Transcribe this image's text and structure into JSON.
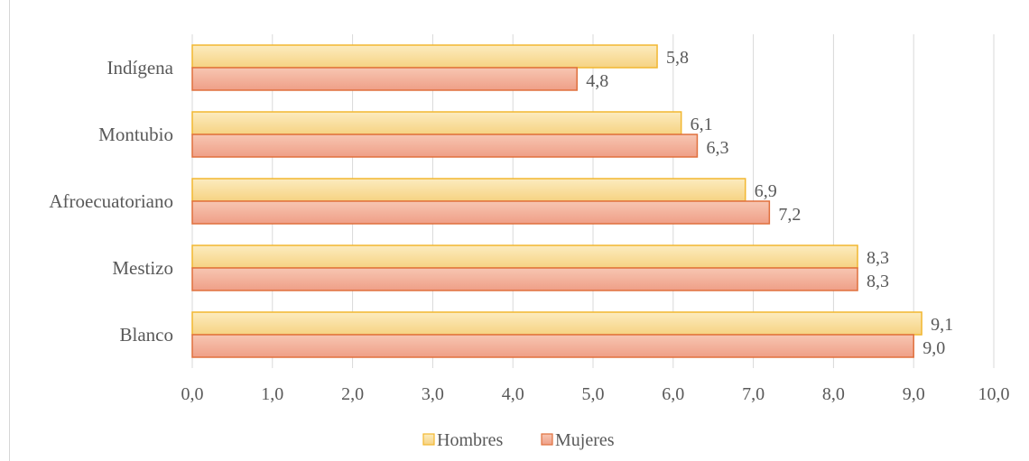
{
  "chart_data": {
    "type": "bar",
    "orientation": "horizontal",
    "categories": [
      "Indígena",
      "Montubio",
      "Afroecuatoriano",
      "Mestizo",
      "Blanco"
    ],
    "series": [
      {
        "name": "Hombres",
        "values": [
          5.8,
          6.1,
          6.9,
          8.3,
          9.1
        ],
        "labels": [
          "5,8",
          "6,1",
          "6,9",
          "8,3",
          "9,1"
        ],
        "fill_top": "#fcecbf",
        "fill_bottom": "#f6d382",
        "stroke": "#f2b730"
      },
      {
        "name": "Mujeres",
        "values": [
          4.8,
          6.3,
          7.2,
          8.3,
          9.0
        ],
        "labels": [
          "4,8",
          "6,3",
          "7,2",
          "8,3",
          "9,0"
        ],
        "fill_top": "#f7c6b2",
        "fill_bottom": "#ef9f87",
        "stroke": "#e0703d"
      }
    ],
    "xlim": [
      0,
      10
    ],
    "xticks": [
      "0,0",
      "1,0",
      "2,0",
      "3,0",
      "4,0",
      "5,0",
      "6,0",
      "7,0",
      "8,0",
      "9,0",
      "10,0"
    ],
    "grid": true,
    "legend_position": "bottom"
  }
}
